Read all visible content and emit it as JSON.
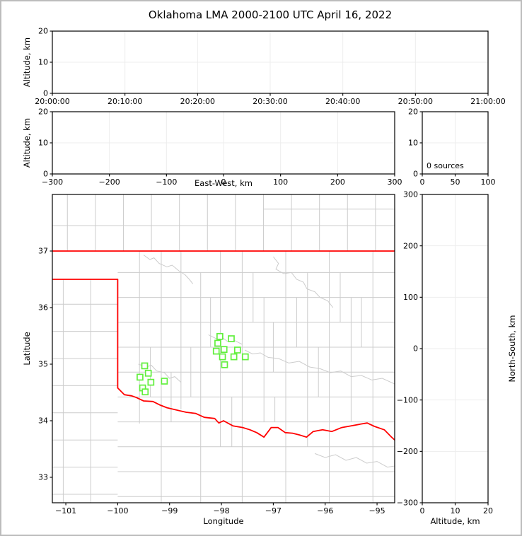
{
  "title": "Oklahoma LMA 2000-2100 UTC April 16, 2022",
  "colors": {
    "state_border": "#ff0000",
    "county_line": "#cccccc",
    "station_marker": "#61ef3d",
    "grid_line": "#ededed",
    "axis_frame": "#000000",
    "figure_border": "#bcbcbc",
    "background": "#ffffff"
  },
  "chart_data": [
    {
      "id": "p1",
      "name": "time-height-panel",
      "type": "scatter",
      "series": [],
      "xlabel": "",
      "ylabel": "Altitude, km",
      "xlim": [
        0,
        3600
      ],
      "ylim": [
        0,
        20
      ],
      "xticks": [
        0,
        600,
        1200,
        1800,
        2400,
        3000,
        3600
      ],
      "xtick_labels": [
        "20:00:00",
        "20:10:00",
        "20:20:00",
        "20:30:00",
        "20:40:00",
        "20:50:00",
        "21:00:00"
      ],
      "yticks": [
        0,
        10,
        20
      ],
      "grid": true
    },
    {
      "id": "p2",
      "name": "east-west-height-panel",
      "type": "scatter",
      "series": [],
      "xlabel": "East-West, km",
      "ylabel": "Altitude, km",
      "xlim": [
        -300,
        300
      ],
      "ylim": [
        0,
        20
      ],
      "xticks": [
        -300,
        -200,
        -100,
        0,
        100,
        200,
        300
      ],
      "yticks": [
        0,
        10,
        20
      ],
      "grid": true
    },
    {
      "id": "p3",
      "name": "altitude-histogram-panel",
      "type": "scatter",
      "series": [],
      "xlabel": "",
      "ylabel": "",
      "xlim": [
        0,
        100
      ],
      "ylim": [
        0,
        20
      ],
      "xticks": [
        0,
        50,
        100
      ],
      "yticks": [
        0,
        10,
        20
      ],
      "grid": true,
      "annotation": "0 sources"
    },
    {
      "id": "p4",
      "name": "plan-view-map-panel",
      "type": "scatter",
      "xlabel": "Longitude",
      "ylabel": "Latitude",
      "xlim": [
        -101.26,
        -94.66
      ],
      "ylim": [
        32.55,
        38.0
      ],
      "xticks": [
        -101,
        -100,
        -99,
        -98,
        -97,
        -96,
        -95
      ],
      "yticks": [
        33,
        34,
        35,
        36,
        37
      ],
      "grid": false,
      "stations": [
        [
          -98.03,
          35.49
        ],
        [
          -97.81,
          35.45
        ],
        [
          -98.07,
          35.37
        ],
        [
          -97.95,
          35.26
        ],
        [
          -98.1,
          35.23
        ],
        [
          -97.69,
          35.25
        ],
        [
          -97.76,
          35.13
        ],
        [
          -97.98,
          35.13
        ],
        [
          -97.54,
          35.13
        ],
        [
          -97.94,
          34.99
        ],
        [
          -99.48,
          34.97
        ],
        [
          -99.41,
          34.84
        ],
        [
          -99.57,
          34.77
        ],
        [
          -99.36,
          34.68
        ],
        [
          -99.1,
          34.7
        ],
        [
          -99.52,
          34.58
        ],
        [
          -99.47,
          34.51
        ]
      ],
      "state_border": [
        {
          "points": [
            [
              -101.26,
              37.0
            ],
            [
              -94.66,
              37.0
            ]
          ]
        },
        {
          "points": [
            [
              -101.26,
              36.5
            ],
            [
              -100.0,
              36.5
            ],
            [
              -100.0,
              34.58
            ],
            [
              -99.87,
              34.46
            ],
            [
              -99.73,
              34.44
            ],
            [
              -99.64,
              34.41
            ],
            [
              -99.5,
              34.35
            ],
            [
              -99.32,
              34.34
            ],
            [
              -99.19,
              34.28
            ],
            [
              -99.05,
              34.23
            ],
            [
              -98.87,
              34.19
            ],
            [
              -98.68,
              34.15
            ],
            [
              -98.5,
              34.13
            ],
            [
              -98.33,
              34.06
            ],
            [
              -98.13,
              34.04
            ],
            [
              -98.05,
              33.96
            ],
            [
              -97.96,
              34.0
            ],
            [
              -97.78,
              33.91
            ],
            [
              -97.59,
              33.88
            ],
            [
              -97.45,
              33.84
            ],
            [
              -97.32,
              33.79
            ],
            [
              -97.18,
              33.71
            ],
            [
              -97.04,
              33.88
            ],
            [
              -96.91,
              33.88
            ],
            [
              -96.77,
              33.79
            ],
            [
              -96.63,
              33.78
            ],
            [
              -96.5,
              33.75
            ],
            [
              -96.36,
              33.71
            ],
            [
              -96.23,
              33.81
            ],
            [
              -96.05,
              33.84
            ],
            [
              -95.87,
              33.81
            ],
            [
              -95.68,
              33.88
            ],
            [
              -95.5,
              33.91
            ],
            [
              -95.32,
              33.94
            ],
            [
              -95.19,
              33.96
            ],
            [
              -95.05,
              33.9
            ],
            [
              -94.86,
              33.84
            ],
            [
              -94.72,
              33.71
            ],
            [
              -94.66,
              33.66
            ]
          ]
        }
      ],
      "counties": {
        "columns": [
          [
            -100.97,
            38.0,
            37.0
          ],
          [
            -100.43,
            38.0,
            37.0
          ],
          [
            -99.89,
            38.0,
            37.0
          ],
          [
            -99.35,
            38.0,
            37.0
          ],
          [
            -98.81,
            38.0,
            37.0
          ],
          [
            -98.27,
            38.0,
            37.0
          ],
          [
            -97.73,
            38.0,
            37.0
          ],
          [
            -97.19,
            38.0,
            37.0
          ],
          [
            -96.65,
            38.0,
            37.0
          ],
          [
            -96.11,
            38.0,
            37.0
          ],
          [
            -95.57,
            38.0,
            37.0
          ],
          [
            -95.03,
            38.0,
            37.0
          ],
          [
            -101.05,
            36.5,
            32.55
          ],
          [
            -100.52,
            36.5,
            32.55
          ],
          [
            -99.58,
            37.0,
            33.95
          ],
          [
            -99.16,
            37.0,
            32.55
          ],
          [
            -98.78,
            37.0,
            34.2
          ],
          [
            -98.4,
            36.62,
            32.55
          ],
          [
            -98.02,
            37.0,
            33.54
          ],
          [
            -97.6,
            37.0,
            32.55
          ],
          [
            -97.18,
            36.18,
            33.98
          ],
          [
            -96.76,
            37.0,
            32.55
          ],
          [
            -96.34,
            36.62,
            33.54
          ],
          [
            -95.92,
            37.0,
            32.55
          ],
          [
            -95.5,
            36.18,
            33.98
          ],
          [
            -95.08,
            37.0,
            32.55
          ]
        ],
        "rows": [
          [
            37.45,
            -101.26,
            -94.66
          ],
          [
            37.74,
            -97.19,
            -94.66
          ],
          [
            36.06,
            -101.26,
            -100.0
          ],
          [
            35.58,
            -101.26,
            -100.0
          ],
          [
            35.1,
            -101.26,
            -100.0
          ],
          [
            34.62,
            -101.26,
            -100.0
          ],
          [
            34.14,
            -101.26,
            -100.0
          ],
          [
            33.66,
            -101.26,
            -100.0
          ],
          [
            33.18,
            -101.26,
            -100.0
          ],
          [
            32.7,
            -101.26,
            -100.0
          ],
          [
            36.62,
            -100.0,
            -94.66
          ],
          [
            36.18,
            -100.0,
            -94.66
          ],
          [
            35.74,
            -100.0,
            -94.66
          ],
          [
            35.3,
            -100.0,
            -94.66
          ],
          [
            34.86,
            -100.0,
            -94.66
          ],
          [
            34.42,
            -100.0,
            -94.66
          ],
          [
            33.98,
            -100.0,
            -94.66
          ],
          [
            33.54,
            -100.0,
            -94.66
          ],
          [
            33.1,
            -100.0,
            -94.66
          ],
          [
            32.66,
            -100.0,
            -94.66
          ]
        ],
        "extra_segments": [
          [
            -98.21,
            36.18,
            -98.21,
            35.3
          ],
          [
            -97.39,
            36.62,
            -97.39,
            35.74
          ],
          [
            -96.55,
            36.18,
            -96.55,
            35.3
          ],
          [
            -95.71,
            36.62,
            -95.71,
            35.74
          ],
          [
            -99.37,
            35.3,
            -99.37,
            34.42
          ],
          [
            -98.59,
            35.3,
            -98.59,
            34.42
          ],
          [
            -97.0,
            35.74,
            -97.0,
            34.86
          ],
          [
            -95.3,
            36.18,
            -95.3,
            35.3
          ],
          [
            -98.97,
            34.86,
            -98.97,
            33.98
          ],
          [
            -96.13,
            35.3,
            -96.13,
            34.42
          ],
          [
            -97.8,
            34.42,
            -97.8,
            33.54
          ],
          [
            -96.97,
            34.42,
            -96.97,
            33.98
          ]
        ],
        "rivers": [
          [
            [
              -99.5,
              36.93
            ],
            [
              -99.38,
              36.85
            ],
            [
              -99.3,
              36.88
            ],
            [
              -99.2,
              36.78
            ],
            [
              -99.05,
              36.72
            ],
            [
              -98.95,
              36.75
            ],
            [
              -98.82,
              36.65
            ],
            [
              -98.7,
              36.58
            ],
            [
              -98.62,
              36.5
            ],
            [
              -98.55,
              36.42
            ]
          ],
          [
            [
              -97.0,
              36.9
            ],
            [
              -96.9,
              36.78
            ],
            [
              -96.95,
              36.68
            ],
            [
              -96.8,
              36.6
            ],
            [
              -96.65,
              36.62
            ],
            [
              -96.55,
              36.5
            ],
            [
              -96.42,
              36.45
            ],
            [
              -96.35,
              36.33
            ],
            [
              -96.2,
              36.28
            ],
            [
              -96.1,
              36.18
            ],
            [
              -95.95,
              36.12
            ],
            [
              -95.85,
              36.0
            ]
          ],
          [
            [
              -97.55,
              35.25
            ],
            [
              -97.4,
              35.18
            ],
            [
              -97.25,
              35.2
            ],
            [
              -97.1,
              35.12
            ],
            [
              -96.9,
              35.1
            ],
            [
              -96.7,
              35.02
            ],
            [
              -96.5,
              35.05
            ],
            [
              -96.3,
              34.95
            ],
            [
              -96.1,
              34.92
            ],
            [
              -95.9,
              34.85
            ],
            [
              -95.7,
              34.88
            ],
            [
              -95.5,
              34.78
            ],
            [
              -95.3,
              34.8
            ],
            [
              -95.1,
              34.72
            ],
            [
              -94.9,
              34.75
            ],
            [
              -94.66,
              34.65
            ]
          ],
          [
            [
              -96.2,
              33.42
            ],
            [
              -96.0,
              33.35
            ],
            [
              -95.8,
              33.4
            ],
            [
              -95.6,
              33.3
            ],
            [
              -95.4,
              33.35
            ],
            [
              -95.2,
              33.25
            ],
            [
              -95.0,
              33.28
            ],
            [
              -94.8,
              33.18
            ],
            [
              -94.66,
              33.2
            ]
          ],
          [
            [
              -99.6,
              35.0
            ],
            [
              -99.45,
              34.95
            ],
            [
              -99.35,
              34.98
            ],
            [
              -99.25,
              34.88
            ],
            [
              -99.1,
              34.85
            ],
            [
              -99.0,
              34.75
            ],
            [
              -98.9,
              34.78
            ],
            [
              -98.78,
              34.68
            ]
          ],
          [
            [
              -98.25,
              35.52
            ],
            [
              -98.1,
              35.45
            ],
            [
              -98.0,
              35.48
            ],
            [
              -97.88,
              35.4
            ],
            [
              -97.75,
              35.42
            ],
            [
              -97.6,
              35.35
            ]
          ]
        ]
      }
    },
    {
      "id": "p5",
      "name": "north-south-height-panel",
      "type": "scatter",
      "series": [],
      "xlabel": "Altitude, km",
      "ylabel": "North-South, km",
      "xlim": [
        0,
        20
      ],
      "ylim": [
        -300,
        300
      ],
      "xticks": [
        0,
        10,
        20
      ],
      "yticks": [
        -300,
        -200,
        -100,
        0,
        100,
        200,
        300
      ],
      "grid": true
    }
  ]
}
